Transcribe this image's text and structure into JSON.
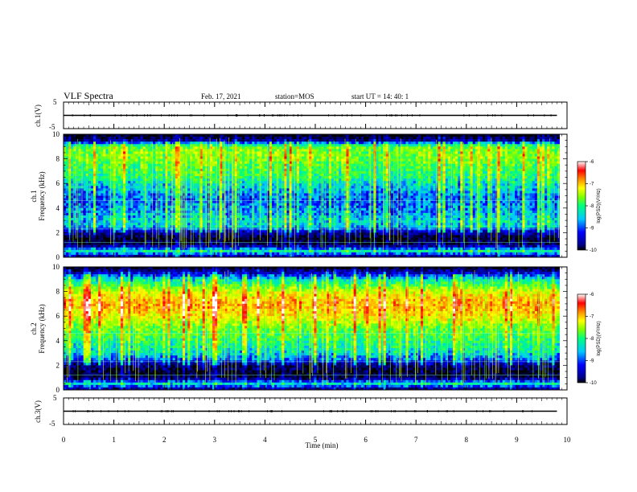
{
  "header": {
    "title": "VLF Spectra",
    "date": "Feb. 17, 2021",
    "station": "station=MOS",
    "start": "start  UT =   14: 40: 1"
  },
  "colors": {
    "scale": [
      "#000000",
      "#00008b",
      "#0000ff",
      "#00c8ff",
      "#00ff7f",
      "#7fff00",
      "#ffff00",
      "#ff8c00",
      "#ff0000",
      "#ffffff"
    ]
  },
  "chart_data": [
    {
      "type": "line",
      "name": "ch.1 waveform",
      "ylabel": "ch.1(V)",
      "ylim": [
        -5,
        5
      ],
      "yticks": [
        "5",
        "-5"
      ],
      "xlim": [
        0,
        10
      ],
      "x": [
        0,
        9.8
      ],
      "y": [
        0,
        0
      ]
    },
    {
      "type": "heatmap",
      "name": "ch.1 spectrogram",
      "ylabel": "ch.1\nFrequency (kHz)",
      "ylim": [
        0,
        10
      ],
      "yticks": [
        "10",
        "8",
        "6",
        "4",
        "2",
        "0"
      ],
      "xlim": [
        0,
        10
      ],
      "colorbar": {
        "label": "log(PSD)(V²/Hz)",
        "range": [
          -10,
          -6
        ],
        "ticks": [
          "-6",
          "-7",
          "-8",
          "-9",
          "-10"
        ]
      },
      "profile": {
        "freq_khz": [
          0,
          0.5,
          1,
          1.5,
          2,
          2.5,
          3,
          3.5,
          4,
          4.5,
          5,
          5.5,
          6,
          6.5,
          7,
          7.5,
          8,
          8.5,
          9,
          9.5,
          10
        ],
        "log_psd": [
          -9.6,
          -8.4,
          -9.7,
          -9.9,
          -9.5,
          -8.6,
          -8.5,
          -8.7,
          -8.8,
          -8.9,
          -8.9,
          -8.6,
          -8.5,
          -8.2,
          -8.1,
          -8.0,
          -7.8,
          -7.8,
          -7.9,
          -9.5,
          -10
        ]
      }
    },
    {
      "type": "heatmap",
      "name": "ch.2 spectrogram",
      "ylabel": "ch.2\nFrequency (kHz)",
      "ylim": [
        0,
        10
      ],
      "yticks": [
        "10",
        "8",
        "6",
        "4",
        "2",
        "0"
      ],
      "xlim": [
        0,
        10
      ],
      "colorbar": {
        "label": "log(PSD)(V²/Hz)",
        "range": [
          -10,
          -6
        ],
        "ticks": [
          "-6",
          "-7",
          "-8",
          "-9",
          "-10"
        ]
      },
      "profile": {
        "freq_khz": [
          0,
          0.5,
          1,
          1.5,
          2,
          2.5,
          3,
          3.5,
          4,
          4.5,
          5,
          5.5,
          6,
          6.5,
          7,
          7.5,
          8,
          8.5,
          9,
          9.5,
          10
        ],
        "log_psd": [
          -9.7,
          -8.5,
          -9.8,
          -9.9,
          -9.6,
          -8.9,
          -8.5,
          -8.3,
          -8.2,
          -8.0,
          -7.9,
          -7.6,
          -7.3,
          -7.1,
          -7.0,
          -7.2,
          -7.5,
          -8.0,
          -8.5,
          -9.3,
          -10
        ]
      }
    },
    {
      "type": "line",
      "name": "ch.3 waveform",
      "ylabel": "ch.3(V)",
      "ylim": [
        -5,
        5
      ],
      "yticks": [
        "5",
        "-5"
      ],
      "xlim": [
        0,
        10
      ],
      "xlabel": "Time  (min)",
      "xticks": [
        "0",
        "1",
        "2",
        "3",
        "4",
        "5",
        "6",
        "7",
        "8",
        "9",
        "10"
      ],
      "x": [
        0,
        9.8
      ],
      "y": [
        0,
        0
      ]
    }
  ]
}
